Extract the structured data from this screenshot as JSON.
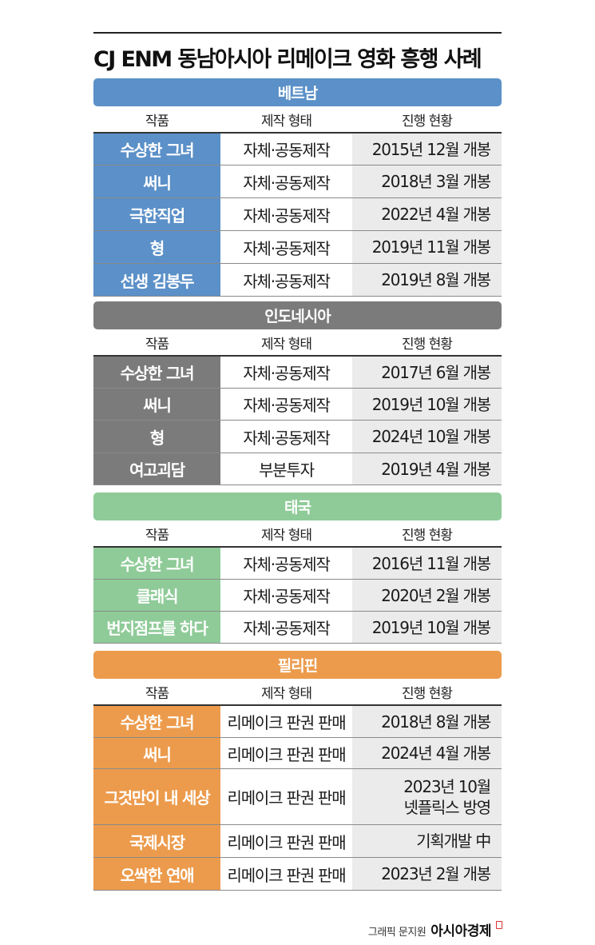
{
  "title": "CJ ENM 동남아시아 리메이크 영화 흥행 사례",
  "column_headers": [
    "작품",
    "제작 형태",
    "진행 현황"
  ],
  "sections": [
    {
      "name": "베트남",
      "color": "#5b90c8",
      "rows": [
        {
          "title": "수상한 그녀",
          "type": "자체·공동제작",
          "status": [
            "2015년 12월 개봉"
          ]
        },
        {
          "title": "써니",
          "type": "자체·공동제작",
          "status": [
            "2018년 3월 개봉"
          ]
        },
        {
          "title": "극한직업",
          "type": "자체·공동제작",
          "status": [
            "2022년 4월 개봉"
          ]
        },
        {
          "title": "형",
          "type": "자체·공동제작",
          "status": [
            "2019년 11월 개봉"
          ]
        },
        {
          "title": "선생 김봉두",
          "type": "자체·공동제작",
          "status": [
            "2019년 8월 개봉"
          ]
        }
      ]
    },
    {
      "name": "인도네시아",
      "color": "#7b7b7b",
      "rows": [
        {
          "title": "수상한 그녀",
          "type": "자체·공동제작",
          "status": [
            "2017년 6월 개봉"
          ]
        },
        {
          "title": "써니",
          "type": "자체·공동제작",
          "status": [
            "2019년 10월 개봉"
          ]
        },
        {
          "title": "형",
          "type": "자체·공동제작",
          "status": [
            "2024년 10월 개봉"
          ]
        },
        {
          "title": "여고괴담",
          "type": "부분투자",
          "status": [
            "2019년 4월 개봉"
          ]
        }
      ]
    },
    {
      "name": "태국",
      "color": "#8fcb98",
      "rows": [
        {
          "title": "수상한 그녀",
          "type": "자체·공동제작",
          "status": [
            "2016년 11월 개봉"
          ]
        },
        {
          "title": "클래식",
          "type": "자체·공동제작",
          "status": [
            "2020년 2월 개봉"
          ]
        },
        {
          "title": "번지점프를 하다",
          "type": "자체·공동제작",
          "status": [
            "2019년 10월 개봉"
          ]
        }
      ]
    },
    {
      "name": "필리핀",
      "color": "#ec9b4c",
      "rows": [
        {
          "title": "수상한 그녀",
          "type": "리메이크 판권 판매",
          "status": [
            "2018년 8월 개봉"
          ]
        },
        {
          "title": "써니",
          "type": "리메이크 판권 판매",
          "status": [
            "2024년 4월 개봉"
          ]
        },
        {
          "title": "그것만이 내 세상",
          "type": "리메이크 판권 판매",
          "status": [
            "2023년 10월",
            "넷플릭스 방영"
          ]
        },
        {
          "title": "국제시장",
          "type": "리메이크 판권 판매",
          "status": [
            "기획개발 中"
          ]
        },
        {
          "title": "오싹한 연애",
          "type": "리메이크 판권 판매",
          "status": [
            "2023년 2월 개봉"
          ]
        }
      ]
    }
  ],
  "credit": {
    "text": "그래픽 문지원",
    "brand": "아시아경제"
  }
}
